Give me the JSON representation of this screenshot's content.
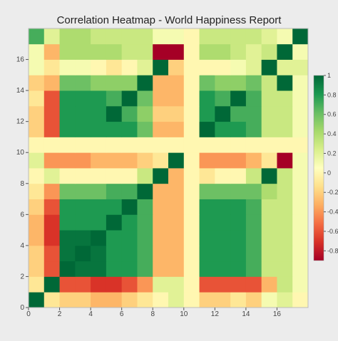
{
  "chart_data": {
    "type": "heatmap",
    "title": "Correlation Heatmap - World Happiness Report",
    "xlabel": "",
    "ylabel": "",
    "grid": false,
    "n": 18,
    "x_ticks": [
      0,
      2,
      4,
      6,
      8,
      10,
      12,
      14,
      16
    ],
    "y_ticks": [
      0,
      2,
      4,
      6,
      8,
      10,
      12,
      14,
      16
    ],
    "colorbar": {
      "range": [
        -0.9,
        1.0
      ],
      "ticks": [
        -0.8,
        -0.6,
        -0.4,
        -0.2,
        0,
        0.2,
        0.4,
        0.6,
        0.8,
        1
      ],
      "tick_labels": [
        "-0.8",
        "-0.6",
        "-0.4",
        "-0.2",
        "0",
        "0.2",
        "0.4",
        "0.6",
        "0.8",
        "1"
      ],
      "colormap": "RdYlGn"
    },
    "matrix": [
      [
        1.0,
        -0.1,
        -0.2,
        -0.2,
        -0.3,
        -0.3,
        -0.2,
        -0.1,
        0.0,
        0.2,
        0.0,
        -0.2,
        -0.2,
        -0.1,
        -0.2,
        0.1,
        0.2,
        0.0
      ],
      [
        -0.1,
        1.0,
        -0.6,
        -0.6,
        -0.7,
        -0.7,
        -0.6,
        -0.4,
        0.2,
        0.2,
        0.0,
        -0.6,
        -0.6,
        -0.6,
        -0.6,
        -0.3,
        0.3,
        0.1
      ],
      [
        -0.2,
        -0.6,
        1.0,
        0.95,
        0.95,
        0.8,
        0.8,
        0.7,
        -0.3,
        -0.3,
        0.0,
        0.8,
        0.8,
        0.8,
        0.7,
        0.3,
        0.3,
        0.1
      ],
      [
        -0.2,
        -0.6,
        0.95,
        1.0,
        0.95,
        0.8,
        0.8,
        0.7,
        -0.3,
        -0.3,
        0.0,
        0.8,
        0.8,
        0.8,
        0.7,
        0.3,
        0.3,
        0.1
      ],
      [
        -0.3,
        -0.7,
        0.95,
        0.95,
        1.0,
        0.8,
        0.8,
        0.7,
        -0.3,
        -0.3,
        0.0,
        0.8,
        0.8,
        0.8,
        0.7,
        0.3,
        0.3,
        0.1
      ],
      [
        -0.3,
        -0.7,
        0.8,
        0.8,
        0.8,
        1.0,
        0.8,
        0.7,
        -0.3,
        -0.3,
        0.0,
        0.8,
        0.8,
        0.8,
        0.7,
        0.3,
        0.3,
        0.1
      ],
      [
        -0.2,
        -0.6,
        0.8,
        0.8,
        0.8,
        0.8,
        1.0,
        0.7,
        -0.3,
        -0.3,
        0.0,
        0.8,
        0.8,
        0.8,
        0.7,
        0.3,
        0.3,
        0.1
      ],
      [
        -0.1,
        -0.4,
        0.6,
        0.6,
        0.6,
        0.7,
        0.7,
        1.0,
        -0.3,
        -0.3,
        0.0,
        0.6,
        0.6,
        0.6,
        0.6,
        0.4,
        0.3,
        0.1
      ],
      [
        0.0,
        0.2,
        0.0,
        0.0,
        0.0,
        0.0,
        0.0,
        0.3,
        1.0,
        -0.3,
        0.0,
        -0.1,
        0.0,
        0.0,
        0.3,
        1.0,
        0.3,
        0.1
      ],
      [
        0.2,
        -0.4,
        -0.4,
        -0.4,
        -0.3,
        -0.3,
        -0.3,
        -0.2,
        -0.1,
        1.0,
        0.0,
        -0.4,
        -0.4,
        -0.4,
        -0.3,
        -0.1,
        -0.9,
        0.1
      ],
      [
        0.0,
        0.0,
        0.0,
        0.0,
        0.0,
        0.0,
        0.0,
        0.0,
        0.0,
        0.0,
        0.0,
        0.0,
        0.0,
        0.0,
        0.0,
        0.0,
        0.0,
        0.0
      ],
      [
        -0.2,
        -0.6,
        0.8,
        0.8,
        0.8,
        0.8,
        0.8,
        0.6,
        -0.3,
        -0.3,
        0.0,
        1.0,
        0.8,
        0.8,
        0.7,
        0.3,
        0.3,
        0.1
      ],
      [
        -0.2,
        -0.6,
        0.8,
        0.8,
        0.8,
        1.0,
        0.7,
        0.5,
        -0.2,
        -0.2,
        0.0,
        0.8,
        1.0,
        0.7,
        0.7,
        0.3,
        0.3,
        0.1
      ],
      [
        -0.1,
        -0.6,
        0.8,
        0.8,
        0.8,
        0.7,
        1.0,
        0.6,
        -0.3,
        -0.3,
        0.0,
        0.8,
        0.7,
        1.0,
        0.7,
        0.3,
        0.3,
        0.1
      ],
      [
        -0.2,
        -0.3,
        0.6,
        0.6,
        0.5,
        0.5,
        0.5,
        1.0,
        -0.3,
        -0.3,
        0.0,
        0.6,
        0.5,
        0.5,
        0.6,
        0.3,
        1.0,
        0.1
      ],
      [
        0.1,
        -0.1,
        0.1,
        0.1,
        0.0,
        -0.1,
        0.0,
        0.2,
        1.0,
        -0.2,
        0.0,
        0.0,
        0.0,
        0.1,
        0.2,
        1.0,
        0.2,
        0.2
      ],
      [
        0.1,
        -0.3,
        0.4,
        0.4,
        0.4,
        0.4,
        0.3,
        0.3,
        -0.9,
        -0.9,
        0.0,
        0.4,
        0.4,
        0.3,
        0.2,
        0.3,
        1.0,
        0.1
      ],
      [
        0.7,
        0.2,
        0.4,
        0.4,
        0.3,
        0.3,
        0.3,
        0.3,
        0.1,
        0.1,
        0.0,
        0.3,
        0.3,
        0.3,
        0.3,
        0.2,
        0.1,
        1.0
      ]
    ]
  }
}
